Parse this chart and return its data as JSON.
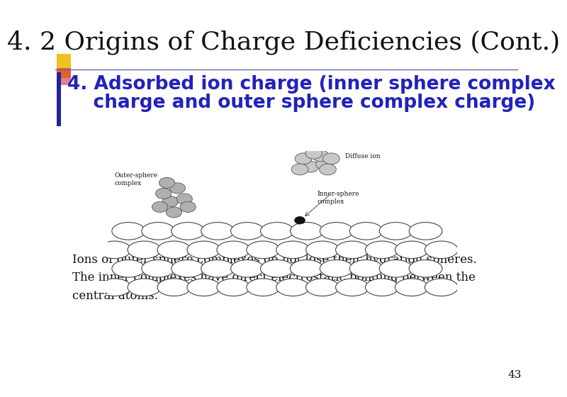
{
  "title": "4. 2 Origins of Charge Deficiencies (Cont.)",
  "title_fontsize": 26,
  "title_color": "#111111",
  "title_font": "serif",
  "heading_line1": "4. Adsorbed ion charge (inner sphere complex",
  "heading_line2": "    charge and outer sphere complex charge)",
  "heading_fontsize": 19,
  "heading_color": "#2222bb",
  "body_text": "Ions of outer sphere complexes do not lose their hydration spheres.\nThe inner complexes have direct electrostatic bonding between the\ncentral atoms.",
  "body_fontsize": 12,
  "body_color": "#111111",
  "page_number": "43",
  "background_color": "#ffffff",
  "accent_yellow": "#f0c020",
  "accent_orange": "#e06030",
  "accent_pink": "#e08090",
  "accent_blue_line": "#6666aa",
  "blue_bar_color": "#222299"
}
